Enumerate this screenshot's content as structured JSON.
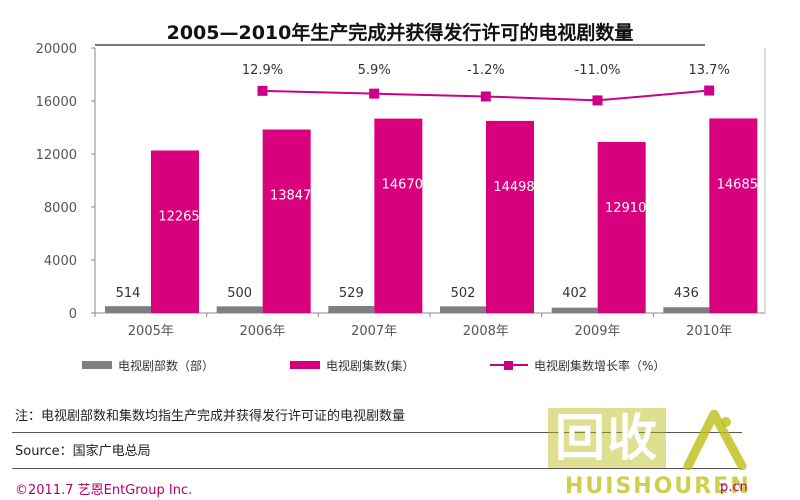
{
  "chart_data": {
    "type": "bar",
    "title": "2005—2010年生产完成并获得发行许可的电视剧数量",
    "categories": [
      "2005年",
      "2006年",
      "2007年",
      "2008年",
      "2009年",
      "2010年"
    ],
    "ylim": [
      0,
      20000
    ],
    "yticks": [
      0,
      4000,
      8000,
      12000,
      16000,
      20000
    ],
    "series": [
      {
        "name": "电视剧部数（部）",
        "type": "bar",
        "color": "#7f7f7f",
        "values": [
          514,
          500,
          529,
          502,
          402,
          436
        ]
      },
      {
        "name": "电视剧集数(集）",
        "type": "bar",
        "color": "#d9007e",
        "values": [
          12265,
          13847,
          14670,
          14498,
          12910,
          14685
        ]
      },
      {
        "name": "电视剧集数增长率（%）",
        "type": "line",
        "color": "#cc0088",
        "values": [
          null,
          12.9,
          5.9,
          -1.2,
          -11.0,
          13.7
        ],
        "labels": [
          null,
          "12.9%",
          "5.9%",
          "-1.2%",
          "-11.0%",
          "13.7%"
        ]
      }
    ],
    "grid": false,
    "legend": "bottom"
  },
  "note": "注：电视剧部数和集数均指生产完成并获得发行许可证的电视剧数量",
  "source": "Source：国家广电总局",
  "copyright": "©2011.7 艺恩EntGroup Inc.",
  "watermark": {
    "box": "回收",
    "text": "HUISHOUREN",
    "site": "p.cn"
  }
}
